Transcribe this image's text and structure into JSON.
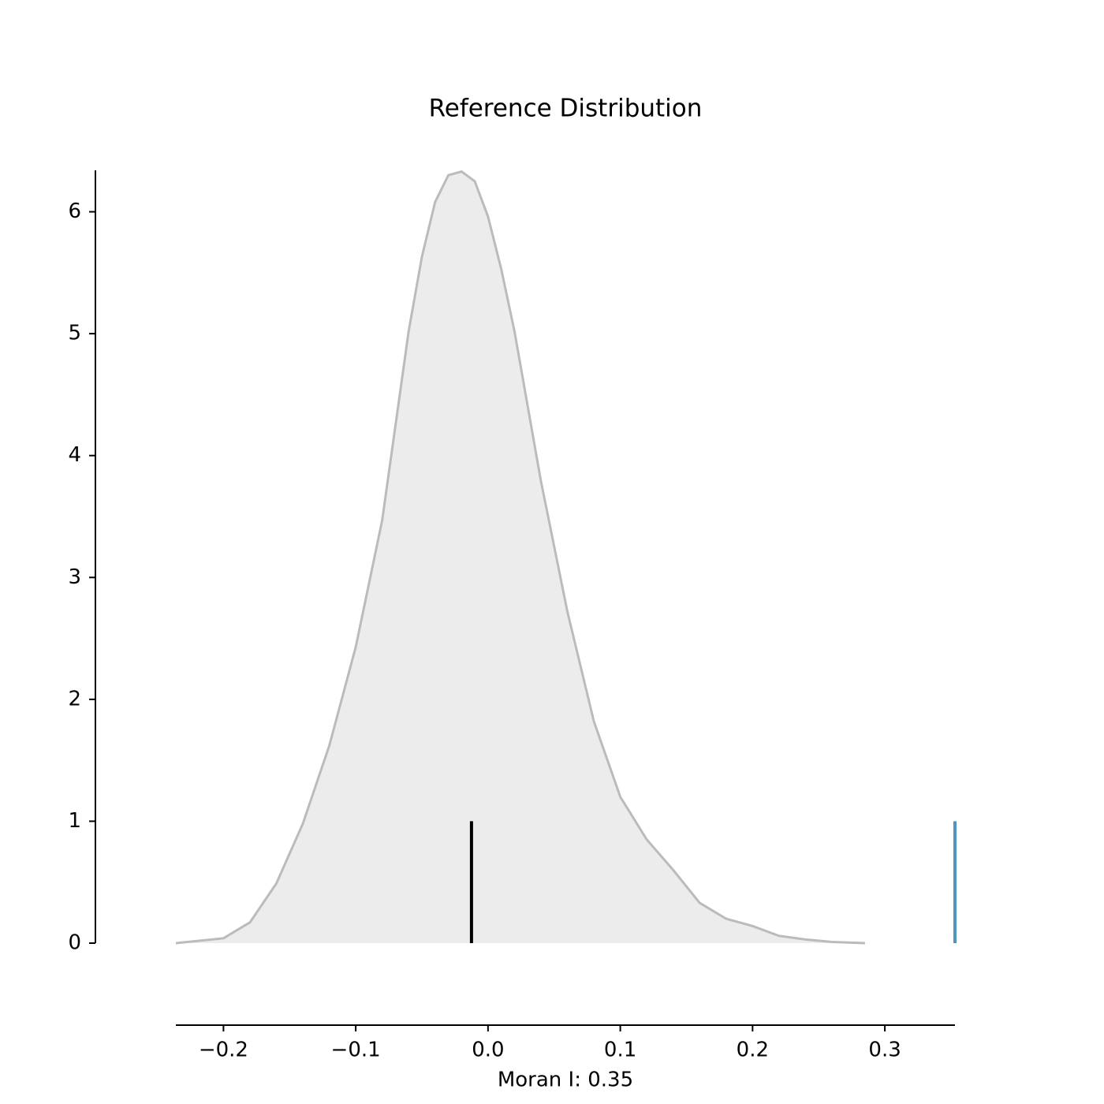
{
  "chart_data": {
    "type": "density",
    "title": "Reference Distribution",
    "x_label": "Moran I: 0.35",
    "x": [
      -0.236,
      -0.2,
      -0.18,
      -0.16,
      -0.14,
      -0.12,
      -0.1,
      -0.08,
      -0.06,
      -0.05,
      -0.04,
      -0.03,
      -0.02,
      -0.01,
      0.0,
      0.01,
      0.02,
      0.04,
      0.06,
      0.08,
      0.1,
      0.12,
      0.14,
      0.16,
      0.18,
      0.2,
      0.22,
      0.24,
      0.26,
      0.285
    ],
    "values": [
      0,
      0.04,
      0.17,
      0.49,
      0.98,
      1.62,
      2.43,
      3.47,
      5.02,
      5.63,
      6.08,
      6.3,
      6.33,
      6.25,
      5.96,
      5.53,
      5.02,
      3.79,
      2.72,
      1.82,
      1.2,
      0.85,
      0.6,
      0.33,
      0.2,
      0.14,
      0.06,
      0.03,
      0.01,
      0
    ],
    "fill_color": "#ececec",
    "line_color": "#bbbbbb",
    "vlines": [
      {
        "x": -0.0125,
        "height": 1,
        "color": "#000000"
      },
      {
        "x": 0.353,
        "height": 1,
        "color": "#4c97bf"
      }
    ],
    "xlim": [
      -0.236,
      0.353
    ],
    "ylim": [
      0,
      6.34
    ],
    "xticks": [
      {
        "value": -0.2,
        "label": "−0.2"
      },
      {
        "value": -0.1,
        "label": "−0.1"
      },
      {
        "value": 0,
        "label": "0.0"
      },
      0.1,
      0.2,
      0.3
    ],
    "yticks": [
      0,
      1,
      2,
      3,
      4,
      5,
      6
    ]
  }
}
